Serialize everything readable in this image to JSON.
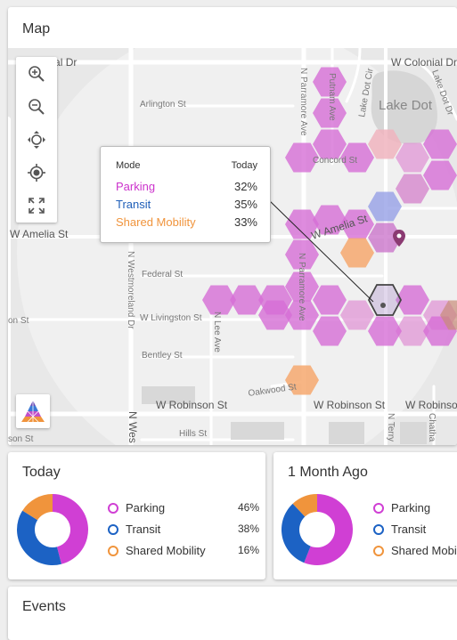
{
  "map": {
    "title": "Map",
    "streets": {
      "colonial_dr_left": "Colonial Dr",
      "colonial_dr_right": "W Colonial Dr",
      "arlington": "Arlington St",
      "lake_dot_cir": "Lake Dot Cir",
      "lake_dot_dr": "Lake Dot Dr",
      "lake_dot": "Lake Dot",
      "parramore_upper": "N Parramore Ave",
      "parramore_lower": "N Parramore Ave",
      "putnam": "Putnam Ave",
      "concord": "Concord St",
      "amelia_left": "W Amelia St",
      "amelia_right": "W Amelia St",
      "federal": "Federal St",
      "westmoreland": "N Westmoreland Dr",
      "livingston_left": "on St",
      "livingston": "W Livingston St",
      "lee": "N Lee Ave",
      "bentley": "Bentley St",
      "oakwood": "Oakwood St",
      "robinson_mid": "W Robinson St",
      "robinson_right1": "W Robinson St",
      "robinson_right2": "W Robinson",
      "hills": "Hills St",
      "terry": "N Terry",
      "chatham": "Chatha",
      "west_fragment": "N Wes",
      "son_fragment": "son St"
    },
    "tooltip": {
      "col_mode": "Mode",
      "col_today": "Today",
      "rows": [
        {
          "mode": "Parking",
          "value": "32%",
          "color": "#cc33cc"
        },
        {
          "mode": "Transit",
          "value": "35%",
          "color": "#1f5fb8"
        },
        {
          "mode": "Shared Mobility",
          "value": "33%",
          "color": "#f0943c"
        }
      ]
    }
  },
  "today": {
    "title": "Today",
    "legend": [
      {
        "label": "Parking",
        "pct": "46%",
        "value": 46,
        "color": "#d03fd4"
      },
      {
        "label": "Transit",
        "pct": "38%",
        "value": 38,
        "color": "#1c62c4"
      },
      {
        "label": "Shared Mobility",
        "pct": "16%",
        "value": 16,
        "color": "#f0943c"
      }
    ]
  },
  "month_ago": {
    "title": "1 Month Ago",
    "legend": [
      {
        "label": "Parking",
        "value": 56,
        "color": "#d03fd4"
      },
      {
        "label": "Transit",
        "value": 32,
        "color": "#1c62c4"
      },
      {
        "label": "Shared Mobility",
        "value": 12,
        "color": "#f0943c"
      }
    ]
  },
  "events": {
    "title": "Events"
  }
}
